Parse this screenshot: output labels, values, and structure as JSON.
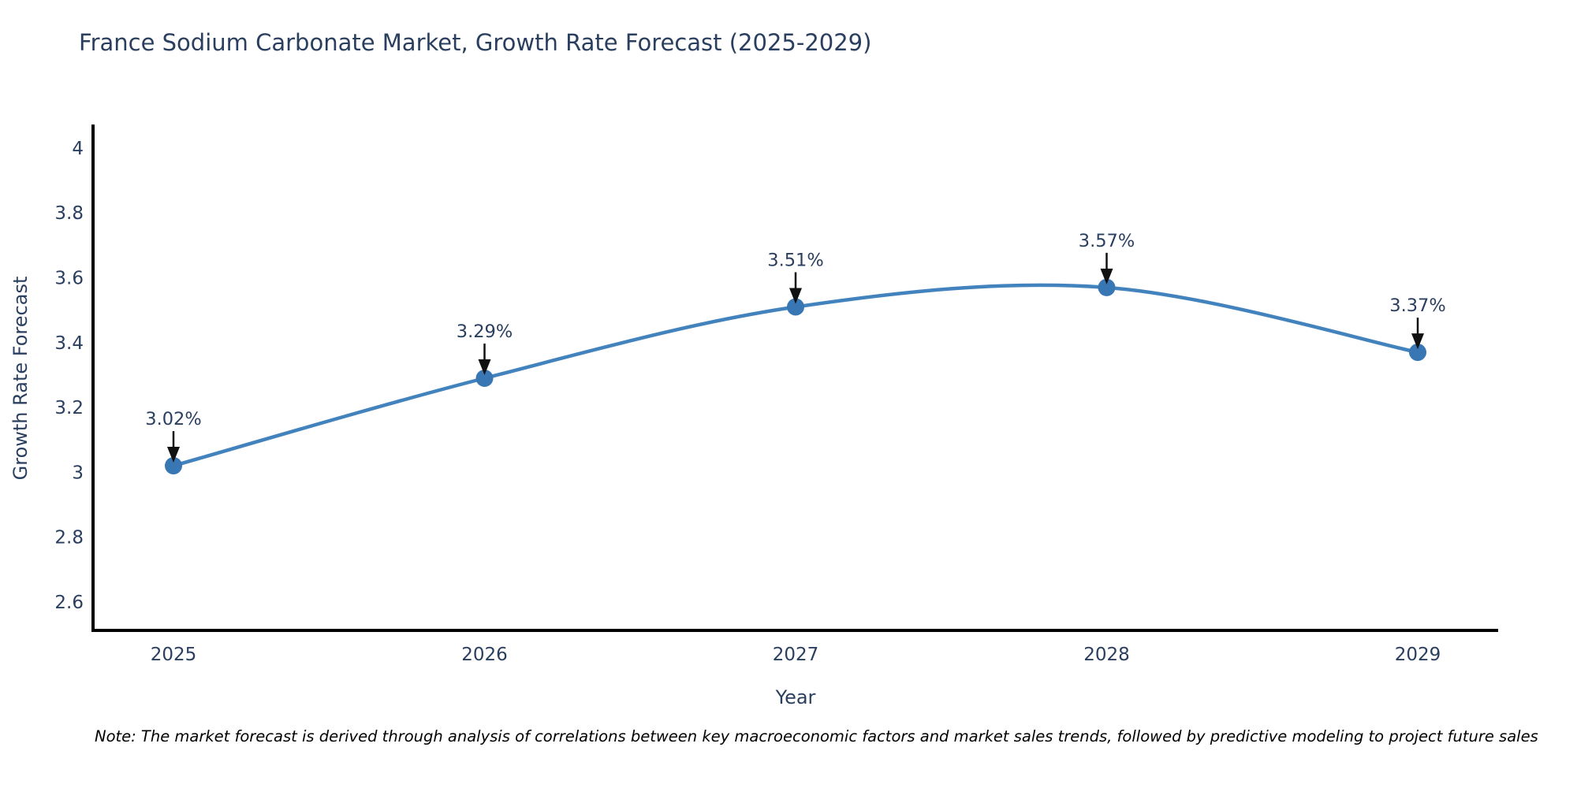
{
  "chart_data": {
    "type": "line",
    "title": "France Sodium Carbonate Market, Growth Rate Forecast (2025-2029)",
    "categories": [
      "2025",
      "2026",
      "2027",
      "2028",
      "2029"
    ],
    "values": [
      3.02,
      3.29,
      3.51,
      3.57,
      3.37
    ],
    "point_labels": [
      "3.02%",
      "3.29%",
      "3.51%",
      "3.57%",
      "3.37%"
    ],
    "xlabel": "Year",
    "ylabel": "Growth Rate Forecast",
    "y_ticks": [
      {
        "value": 4,
        "label": "4"
      },
      {
        "value": 3.8,
        "label": "3.8"
      },
      {
        "value": 3.6,
        "label": "3.6"
      },
      {
        "value": 3.4,
        "label": "3.4"
      },
      {
        "value": 3.2,
        "label": "3.2"
      },
      {
        "value": 3,
        "label": "3"
      },
      {
        "value": 2.8,
        "label": "2.8"
      },
      {
        "value": 2.6,
        "label": "2.6"
      }
    ],
    "ylim": [
      2.512,
      4.068
    ],
    "line_shape": "spline",
    "grid": false,
    "legend": "none",
    "colors": {
      "line": "#4383bd",
      "marker": "#3876b4",
      "axis": "#000000",
      "text": "#2a3f5f",
      "arrow": "#111111"
    }
  },
  "note": "Note: The market forecast is derived through analysis of correlations between key macroeconomic factors and market sales trends, followed by predictive modeling to project future sales"
}
